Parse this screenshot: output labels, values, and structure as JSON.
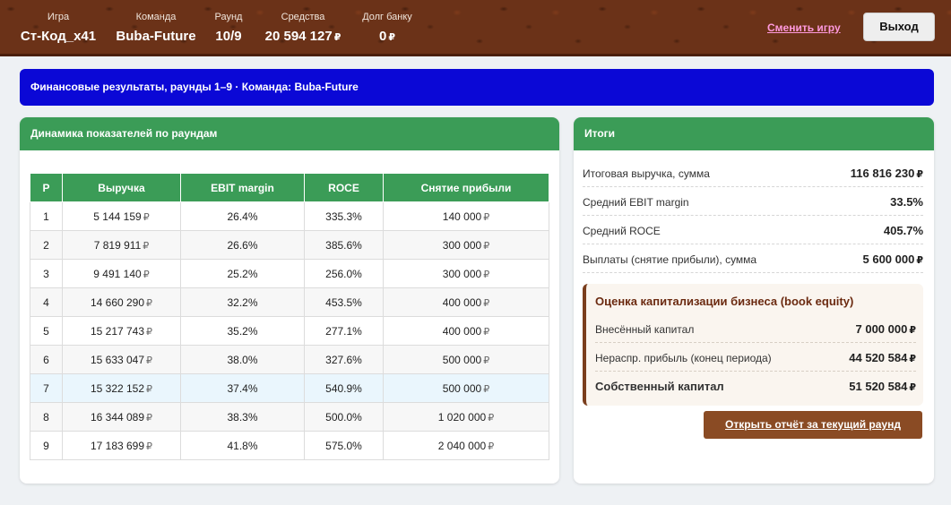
{
  "header": {
    "stats": [
      {
        "label": "Игра",
        "value": "Ст-Код_x41",
        "currency": ""
      },
      {
        "label": "Команда",
        "value": "Buba-Future",
        "currency": ""
      },
      {
        "label": "Раунд",
        "value": "10/9",
        "currency": ""
      },
      {
        "label": "Средства",
        "value": "20 594 127",
        "currency": "₽"
      },
      {
        "label": "Долг банку",
        "value": "0",
        "currency": "₽"
      }
    ],
    "change_game": "Сменить игру",
    "exit": "Выход"
  },
  "banner": "Финансовые результаты, раунды 1–9 · Команда: Buba-Future",
  "dynamics": {
    "title": "Динамика показателей по раундам",
    "columns": [
      "Р",
      "Выручка",
      "EBIT margin",
      "ROCE",
      "Снятие прибыли"
    ],
    "rows": [
      {
        "round": "1",
        "revenue": "5 144 159",
        "ebit": "26.4%",
        "roce": "335.3%",
        "withdraw": "140 000"
      },
      {
        "round": "2",
        "revenue": "7 819 911",
        "ebit": "26.6%",
        "roce": "385.6%",
        "withdraw": "300 000"
      },
      {
        "round": "3",
        "revenue": "9 491 140",
        "ebit": "25.2%",
        "roce": "256.0%",
        "withdraw": "300 000"
      },
      {
        "round": "4",
        "revenue": "14 660 290",
        "ebit": "32.2%",
        "roce": "453.5%",
        "withdraw": "400 000"
      },
      {
        "round": "5",
        "revenue": "15 217 743",
        "ebit": "35.2%",
        "roce": "277.1%",
        "withdraw": "400 000"
      },
      {
        "round": "6",
        "revenue": "15 633 047",
        "ebit": "38.0%",
        "roce": "327.6%",
        "withdraw": "500 000"
      },
      {
        "round": "7",
        "revenue": "15 322 152",
        "ebit": "37.4%",
        "roce": "540.9%",
        "withdraw": "500 000"
      },
      {
        "round": "8",
        "revenue": "16 344 089",
        "ebit": "38.3%",
        "roce": "500.0%",
        "withdraw": "1 020 000"
      },
      {
        "round": "9",
        "revenue": "17 183 699",
        "ebit": "41.8%",
        "roce": "575.0%",
        "withdraw": "2 040 000"
      }
    ],
    "currency": "₽"
  },
  "totals": {
    "title": "Итоги",
    "rows": [
      {
        "label": "Итоговая выручка, сумма",
        "value": "116 816 230",
        "currency": "₽"
      },
      {
        "label": "Средний EBIT margin",
        "value": "33.5%",
        "currency": ""
      },
      {
        "label": "Средний ROCE",
        "value": "405.7%",
        "currency": ""
      },
      {
        "label": "Выплаты (снятие прибыли), сумма",
        "value": "5 600 000",
        "currency": "₽"
      }
    ],
    "equity": {
      "title": "Оценка капитализации бизнеса (book equity)",
      "rows": [
        {
          "label": "Внесённый капитал",
          "value": "7 000 000",
          "currency": "₽"
        },
        {
          "label": "Нераспр. прибыль (конец периода)",
          "value": "44 520 584",
          "currency": "₽"
        },
        {
          "label": "Собственный капитал",
          "value": "51 520 584",
          "currency": "₽"
        }
      ]
    },
    "report_button": "Открыть отчёт за текущий раунд"
  },
  "colors": {
    "header_brown": "#6b3218",
    "banner_blue": "#0b08d6",
    "green": "#3b9c57",
    "button_brown": "#8a4b24",
    "link_pink": "#ff99dd"
  }
}
